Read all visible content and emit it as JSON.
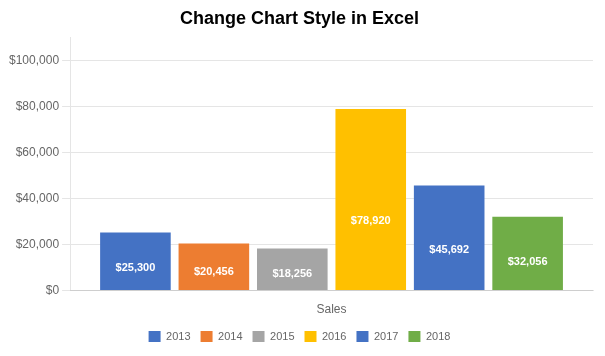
{
  "chart_data": {
    "type": "bar",
    "title": "Change Chart Style in Excel",
    "xlabel": "Sales",
    "categories": [
      null
    ],
    "series": [
      {
        "name": "2013",
        "color": "#4472C4",
        "values": [
          25300
        ],
        "value_labels": [
          "$25,300"
        ]
      },
      {
        "name": "2014",
        "color": "#ED7D31",
        "values": [
          20456
        ],
        "value_labels": [
          "$20,456"
        ]
      },
      {
        "name": "2015",
        "color": "#A5A5A5",
        "values": [
          18256
        ],
        "value_labels": [
          "$18,256"
        ]
      },
      {
        "name": "2016",
        "color": "#FFC000",
        "values": [
          78920
        ],
        "value_labels": [
          "$78,920"
        ]
      },
      {
        "name": "2017",
        "color": "#4472C4",
        "values": [
          45692
        ],
        "value_labels": [
          "$45,692"
        ]
      },
      {
        "name": "2018",
        "color": "#70AD47",
        "values": [
          32056
        ],
        "value_labels": [
          "$32,056"
        ]
      }
    ],
    "ylim": [
      0,
      110000
    ],
    "yticks": [
      {
        "value": 0,
        "label": "$0"
      },
      {
        "value": 20000,
        "label": "$20,000"
      },
      {
        "value": 40000,
        "label": "$40,000"
      },
      {
        "value": 60000,
        "label": "$60,000"
      },
      {
        "value": 80000,
        "label": "$80,000"
      },
      {
        "value": 100000,
        "label": "$100,000"
      }
    ],
    "grid": true,
    "legend": "bottom",
    "data_labels": true,
    "tick_labels": "y"
  }
}
